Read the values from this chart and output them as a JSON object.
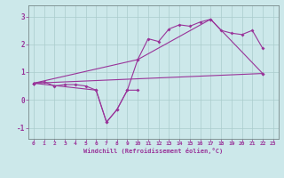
{
  "xlabel": "Windchill (Refroidissement éolien,°C)",
  "bg_color": "#cce8ea",
  "line_color": "#993399",
  "grid_color": "#aacccc",
  "xlim": [
    -0.5,
    23.5
  ],
  "ylim": [
    -1.4,
    3.4
  ],
  "yticks": [
    -1,
    0,
    1,
    2,
    3
  ],
  "xticks": [
    0,
    1,
    2,
    3,
    4,
    5,
    6,
    7,
    8,
    9,
    10,
    11,
    12,
    13,
    14,
    15,
    16,
    17,
    18,
    19,
    20,
    21,
    22,
    23
  ],
  "series1": [
    [
      0,
      0.6
    ],
    [
      1,
      0.65
    ],
    [
      2,
      0.5
    ],
    [
      3,
      0.55
    ],
    [
      4,
      0.55
    ],
    [
      5,
      0.5
    ],
    [
      6,
      0.35
    ],
    [
      7,
      -0.8
    ],
    [
      8,
      -0.35
    ],
    [
      9,
      0.35
    ],
    [
      10,
      1.45
    ],
    [
      11,
      2.2
    ],
    [
      12,
      2.1
    ],
    [
      13,
      2.55
    ],
    [
      14,
      2.7
    ],
    [
      15,
      2.65
    ],
    [
      16,
      2.8
    ],
    [
      17,
      2.9
    ],
    [
      18,
      2.5
    ],
    [
      19,
      2.4
    ],
    [
      20,
      2.35
    ],
    [
      21,
      2.5
    ],
    [
      22,
      1.85
    ]
  ],
  "series2": [
    [
      0,
      0.6
    ],
    [
      10,
      1.45
    ],
    [
      17,
      2.9
    ],
    [
      22,
      0.95
    ]
  ],
  "series3": [
    [
      0,
      0.6
    ],
    [
      22,
      0.95
    ]
  ],
  "series4": [
    [
      0,
      0.6
    ],
    [
      6,
      0.35
    ],
    [
      7,
      -0.8
    ],
    [
      8,
      -0.35
    ],
    [
      9,
      0.35
    ],
    [
      10,
      0.35
    ]
  ]
}
